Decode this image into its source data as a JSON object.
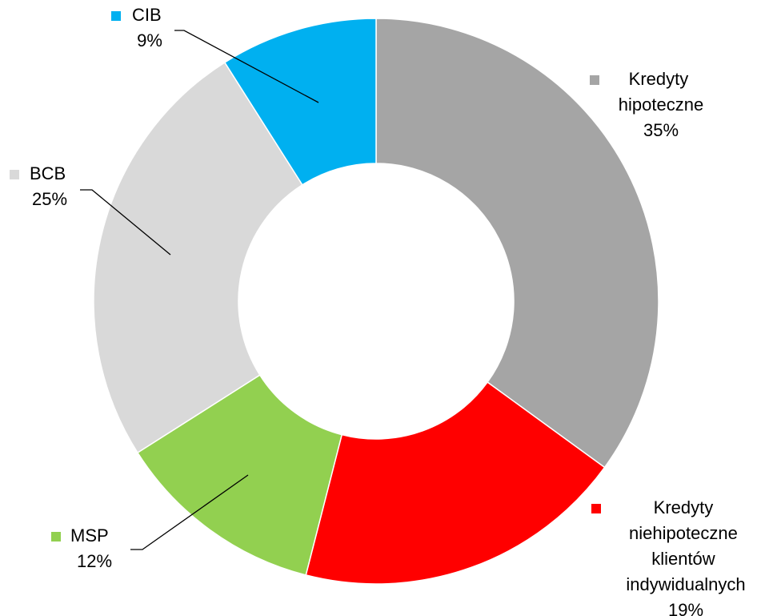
{
  "chart_data": {
    "type": "donut",
    "categories": [
      "Kredyty hipoteczne",
      "Kredyty niehipoteczne klientów indywidualnych",
      "MSP",
      "BCB",
      "CIB"
    ],
    "values": [
      35,
      19,
      12,
      25,
      9
    ],
    "value_labels": [
      "35%",
      "19%",
      "12%",
      "25%",
      "9%"
    ],
    "colors": [
      "#a5a5a5",
      "#ff0000",
      "#92d050",
      "#d9d9d9",
      "#00b0f0"
    ]
  }
}
